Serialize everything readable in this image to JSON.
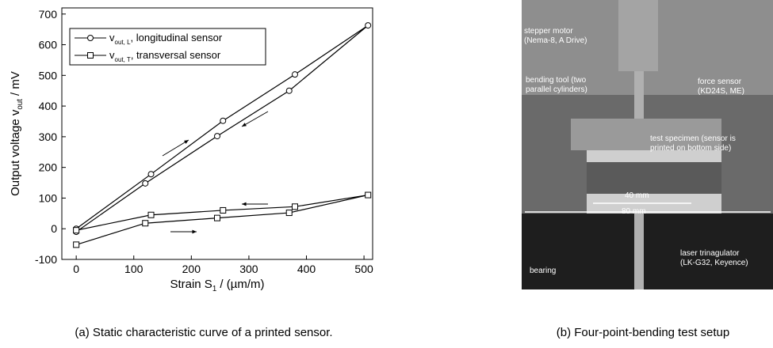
{
  "chart_data": {
    "type": "line",
    "xlabel": {
      "text": "Strain S",
      "sub": "1",
      "suffix": " / (µm/m)"
    },
    "ylabel": {
      "text": "Output voltage v",
      "sub": "out",
      "suffix": " / mV"
    },
    "xlim": [
      -25,
      515
    ],
    "ylim": [
      -100,
      720
    ],
    "xticks": [
      0,
      100,
      200,
      300,
      400,
      500
    ],
    "yticks": [
      -100,
      0,
      100,
      200,
      300,
      400,
      500,
      600,
      700
    ],
    "legend": "upper left",
    "series": [
      {
        "name": "v",
        "name_sub": "out, L",
        "name_suffix": ", longitudinal sensor",
        "marker": "circle",
        "color": "#000000",
        "x": [
          0,
          120,
          245,
          370,
          507,
          380,
          255,
          130,
          0
        ],
        "values": [
          -10,
          148,
          302,
          450,
          663,
          503,
          352,
          178,
          0
        ]
      },
      {
        "name": "v",
        "name_sub": "out, T",
        "name_suffix": ", transversal sensor",
        "marker": "square",
        "color": "#000000",
        "x": [
          0,
          120,
          245,
          370,
          507,
          380,
          255,
          130,
          0
        ],
        "values": [
          -52,
          18,
          35,
          52,
          110,
          72,
          60,
          45,
          -5
        ]
      }
    ]
  },
  "photo": {
    "labels": [
      [
        "stepper motor",
        "(Nema-8, A Drive)"
      ],
      [
        "bending tool (two",
        "parallel cylinders)"
      ],
      [
        "force sensor",
        "(KD24S, ME)"
      ],
      [
        "test specimen (sensor is",
        "printed on bottom side)"
      ],
      [
        "40 mm"
      ],
      [
        "80 mm"
      ],
      [
        "laser trinagulator",
        "(LK-G32, Keyence)"
      ],
      [
        "bearing"
      ]
    ]
  },
  "captions": [
    "(a) Static characteristic curve of a printed sensor.",
    "(b) Four-point-bending test setup"
  ]
}
